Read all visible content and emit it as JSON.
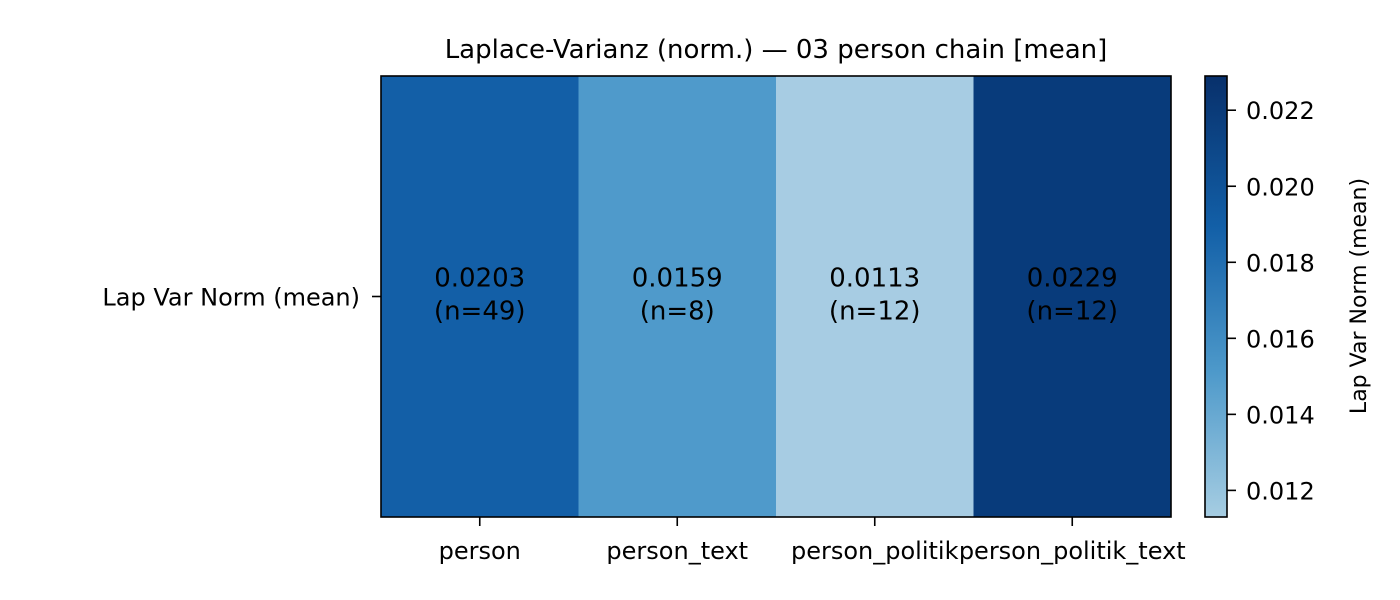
{
  "chart_data": {
    "type": "heatmap",
    "title": "Laplace-Varianz (norm.) — 03 person chain [mean]",
    "rows": [
      "Lap Var Norm (mean)"
    ],
    "columns": [
      "person",
      "person_text",
      "person_politik",
      "person_politik_text"
    ],
    "values": [
      [
        0.0203,
        0.0159,
        0.0113,
        0.0229
      ]
    ],
    "cell_labels": [
      [
        "0.0203",
        "0.0159",
        "0.0113",
        "0.0229"
      ]
    ],
    "counts": [
      [
        "(n=49)",
        "(n=8)",
        "(n=12)",
        "(n=12)"
      ]
    ],
    "colorbar": {
      "label": "Lap Var Norm (mean)",
      "range": [
        0.0113,
        0.0229
      ],
      "ticks": [
        0.012,
        0.014,
        0.016,
        0.018,
        0.02,
        0.022
      ],
      "tick_labels": [
        "0.012",
        "0.014",
        "0.016",
        "0.018",
        "0.020",
        "0.022"
      ],
      "colormap": [
        "#a6cde2",
        "#4d99ca",
        "#125fa7",
        "#08306b"
      ]
    },
    "colors": {
      "cells": [
        "#135fa7",
        "#4f9acb",
        "#a7cce3",
        "#083b7b"
      ]
    }
  }
}
